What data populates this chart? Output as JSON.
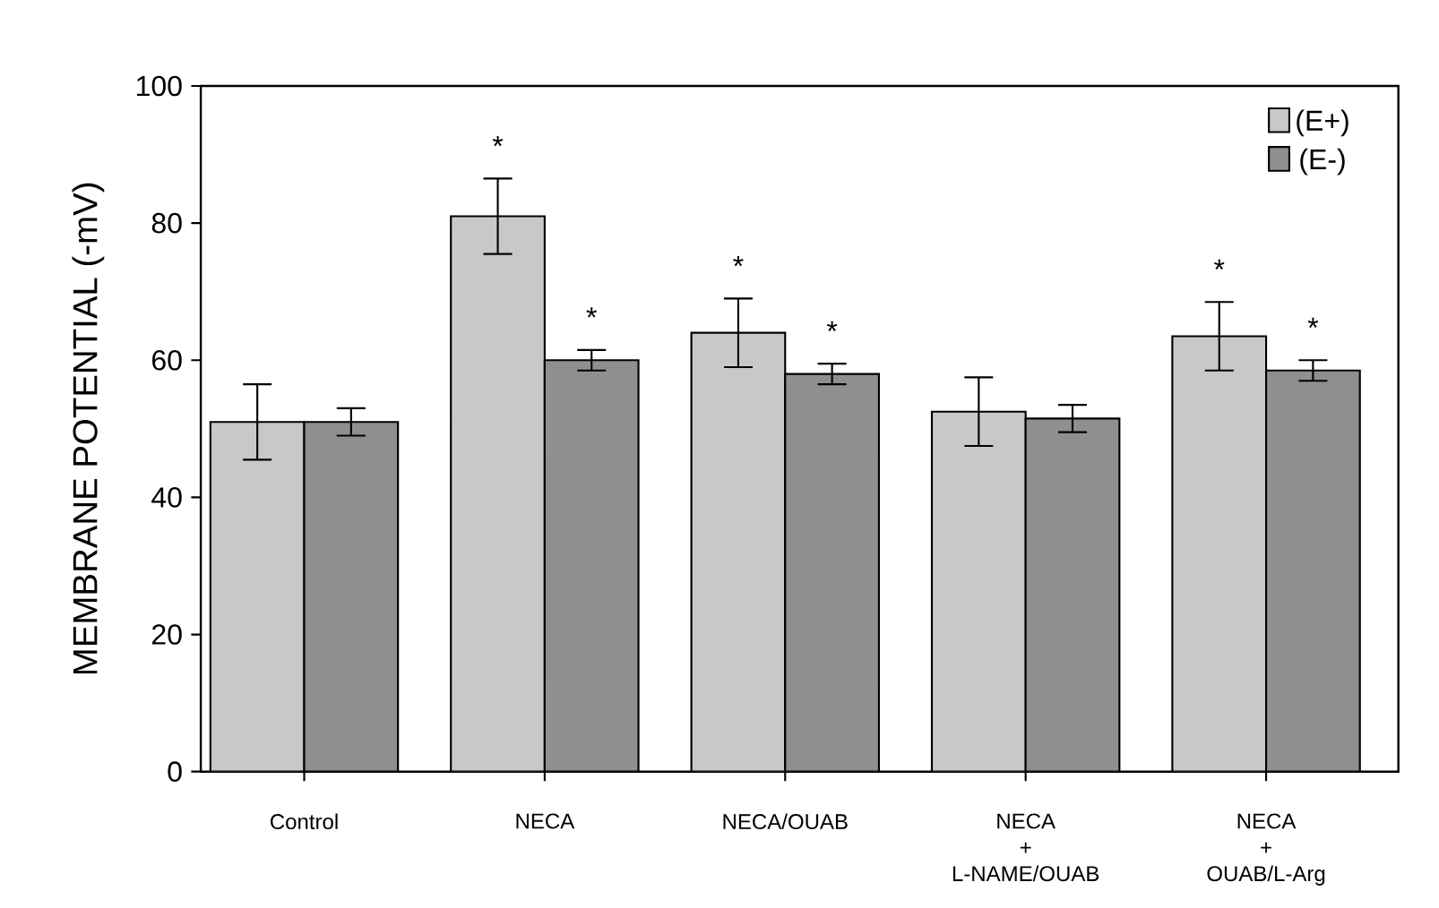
{
  "chart_data": {
    "type": "bar",
    "ylabel": "MEMBRANE POTENTIAL (-mV)",
    "categories": [
      "Control",
      "NECA",
      "NECA/OUAB",
      "NECA\n+\nL-NAME/OUAB",
      "NECA\n+\nOUAB/L-Arg"
    ],
    "series": [
      {
        "name": "(E+)",
        "color": "#c8c8c8",
        "values": [
          51,
          81,
          64,
          52.5,
          63.5
        ],
        "errors": [
          5.5,
          5.5,
          5,
          5,
          5
        ],
        "value_labels": [
          null,
          "*",
          "*",
          null,
          "*"
        ]
      },
      {
        "name": "(E-)",
        "color": "#8f8f8f",
        "values": [
          51,
          60,
          58,
          51.5,
          58.5
        ],
        "errors": [
          2,
          1.5,
          1.5,
          2,
          1.5
        ],
        "value_labels": [
          null,
          "*",
          "*",
          null,
          "*"
        ]
      }
    ],
    "ylim": [
      0,
      100
    ],
    "yticks": [
      0,
      20,
      40,
      60,
      80,
      100
    ],
    "legend": "top right"
  }
}
